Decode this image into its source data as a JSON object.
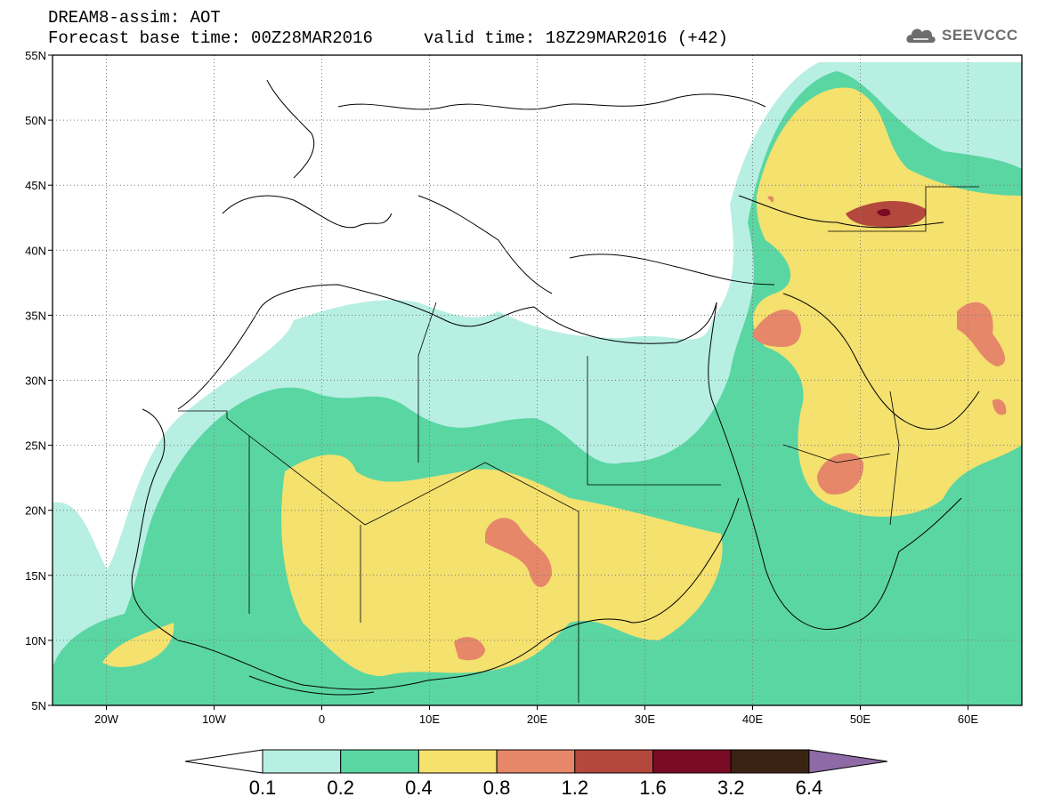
{
  "header": {
    "title_line1": "DREAM8-assim: AOT",
    "title_line2": "Forecast base time: 00Z28MAR2016     valid time: 18Z29MAR2016 (+42)",
    "logo_text": "SEEVCCC"
  },
  "map": {
    "projection": "lat-lon",
    "lon_range": [
      -25,
      65
    ],
    "lat_range": [
      5,
      55
    ],
    "y_tick_labels": [
      "5N",
      "10N",
      "15N",
      "20N",
      "25N",
      "30N",
      "35N",
      "40N",
      "45N",
      "50N",
      "55N"
    ],
    "y_tick_values": [
      5,
      10,
      15,
      20,
      25,
      30,
      35,
      40,
      45,
      50,
      55
    ],
    "x_tick_labels": [
      "20W",
      "10W",
      "0",
      "10E",
      "20E",
      "30E",
      "40E",
      "50E",
      "60E"
    ],
    "x_tick_values": [
      -20,
      -10,
      0,
      10,
      20,
      30,
      40,
      50,
      60
    ],
    "grid": "dotted"
  },
  "colorbar": {
    "levels": [
      "0.1",
      "0.2",
      "0.4",
      "0.8",
      "1.2",
      "1.6",
      "3.2",
      "6.4"
    ],
    "colors": [
      "#ffffff",
      "#b7efe3",
      "#5ad6a3",
      "#f4e16e",
      "#e6876a",
      "#b5483c",
      "#7a0b24",
      "#3b2314",
      "#8e6aa6"
    ]
  }
}
